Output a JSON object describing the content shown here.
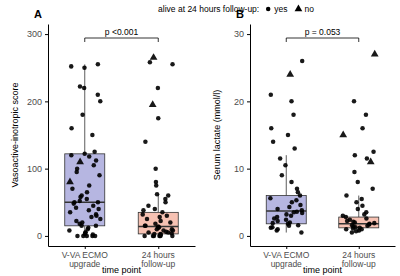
{
  "chart_data": [
    {
      "type": "box",
      "title": "A",
      "legend": "top",
      "legend_title": "alive at 24 hours follow-up:",
      "x_label": "time point",
      "y_label": "Vasoactive-inotropic score",
      "categories": [
        "V-VA ECMO\nupgrade",
        "24 hours\nfollow-up"
      ],
      "colors": [
        "#a9a9dc",
        "#f6b7a6"
      ],
      "ylim": [
        -15,
        315
      ],
      "yticks": [
        0,
        100,
        200,
        300
      ],
      "grid": false,
      "boxes": {
        "min": [
          0,
          0
        ],
        "q1": [
          15,
          3
        ],
        "median": [
          50,
          14
        ],
        "q3": [
          122,
          35
        ],
        "max": [
          255,
          62
        ]
      },
      "annotation": {
        "text": "p <0.001"
      },
      "series": [
        {
          "name": "yes",
          "marker": "circle",
          "values": [
            [
              0,
              0,
              0,
              0,
              0,
              2,
              3,
              5,
              5,
              8,
              10,
              12,
              15,
              15,
              18,
              20,
              22,
              25,
              28,
              30,
              32,
              35,
              38,
              40,
              42,
              45,
              48,
              50,
              50,
              52,
              55,
              58,
              60,
              65,
              70,
              75,
              90,
              95,
              100,
              105,
              112,
              118,
              120,
              122,
              125,
              150,
              160,
              180,
              200,
              210,
              220,
              222,
              250,
              252,
              255
            ],
            [
              0,
              0,
              0,
              0,
              0,
              0,
              1,
              2,
              3,
              3,
              4,
              5,
              5,
              6,
              8,
              8,
              10,
              10,
              12,
              13,
              14,
              15,
              15,
              18,
              20,
              22,
              25,
              28,
              30,
              32,
              35,
              38,
              40,
              45,
              50,
              55,
              60,
              62,
              75,
              80,
              100,
              140,
              175,
              220,
              255,
              258
            ]
          ]
        },
        {
          "name": "no",
          "marker": "triangle",
          "values": [
            [
              80,
              110
            ],
            [
              195,
              265
            ]
          ]
        }
      ]
    },
    {
      "type": "box",
      "title": "B",
      "x_label": "time point",
      "y_label": "Serum lactate (mmol/l)",
      "categories": [
        "V-VA ECMO\nupgrade",
        "24 hours\nfollow-up"
      ],
      "colors": [
        "#a9a9dc",
        "#f6b7a6"
      ],
      "ylim": [
        -1.5,
        31.5
      ],
      "yticks": [
        0,
        10,
        20,
        30
      ],
      "grid": false,
      "boxes": {
        "min": [
          0.5,
          0.5
        ],
        "q1": [
          1.8,
          1.2
        ],
        "median": [
          3.7,
          1.8
        ],
        "q3": [
          6,
          2.8
        ],
        "max": [
          12,
          6
        ]
      },
      "annotation": {
        "text": "p = 0.053"
      },
      "series": [
        {
          "marker": "circle",
          "values": [
            [
              0.5,
              0.8,
              1.0,
              1.2,
              1.3,
              1.5,
              1.6,
              1.8,
              1.9,
              2.0,
              2.2,
              2.4,
              2.6,
              2.8,
              3.0,
              3.2,
              3.4,
              3.5,
              3.6,
              3.8,
              4.0,
              4.3,
              4.6,
              5.0,
              5.3,
              5.6,
              6.0,
              6.5,
              7.0,
              8.0,
              9.0,
              10.5,
              11.5,
              13,
              14,
              15,
              16,
              18,
              20,
              21,
              26
            ],
            [
              0.5,
              0.7,
              0.8,
              1.0,
              1.0,
              1.1,
              1.2,
              1.3,
              1.4,
              1.5,
              1.6,
              1.7,
              1.8,
              1.9,
              2.0,
              2.1,
              2.2,
              2.4,
              2.6,
              2.8,
              3.0,
              3.2,
              3.5,
              4.0,
              4.5,
              5.0,
              5.5,
              6.0,
              7,
              8,
              9.5,
              11.5,
              12,
              12.5,
              16,
              18,
              20
            ]
          ]
        },
        {
          "marker": "triangle",
          "values": [
            [
              24
            ],
            [
              11,
              15,
              27
            ]
          ]
        }
      ]
    }
  ]
}
